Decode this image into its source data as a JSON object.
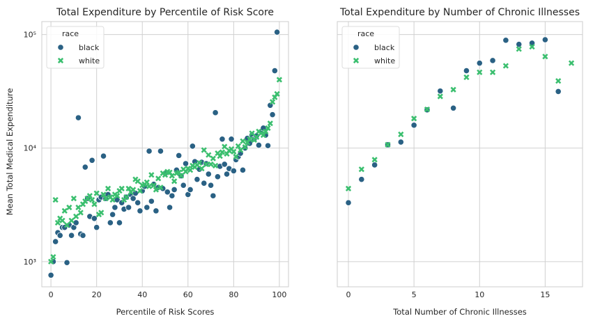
{
  "colors": {
    "black": "#2a6184",
    "white": "#3bbf6f",
    "grid": "#d0d0d0",
    "frame": "#cccccc",
    "text": "#262626"
  },
  "legend_title": "race",
  "chart_data": [
    {
      "type": "scatter",
      "title": "Total Expenditure by Percentile of Risk Score",
      "xlabel": "Percentile of Risk Scores",
      "ylabel": "Mean Total Medical Expenditure",
      "xlim": [
        -4,
        104
      ],
      "ylim": [
        600,
        130000
      ],
      "yscale": "log",
      "xticks": [
        0,
        20,
        40,
        60,
        80,
        100
      ],
      "xtick_labels": [
        "0",
        "20",
        "40",
        "60",
        "80",
        "100"
      ],
      "yticks": [
        1000,
        10000,
        100000
      ],
      "ytick_labels": [
        "10³",
        "10⁴",
        "10⁵"
      ],
      "legend": "top-left",
      "grid": true,
      "series": [
        {
          "name": "black",
          "marker": "circle",
          "x": [
            0,
            1,
            2,
            3,
            4,
            5,
            6,
            7,
            8,
            9,
            10,
            11,
            12,
            13,
            14,
            15,
            16,
            17,
            18,
            19,
            20,
            21,
            22,
            23,
            24,
            25,
            26,
            27,
            28,
            29,
            30,
            31,
            32,
            33,
            34,
            35,
            36,
            37,
            38,
            39,
            40,
            41,
            42,
            43,
            44,
            45,
            46,
            47,
            48,
            49,
            50,
            51,
            52,
            53,
            54,
            55,
            56,
            57,
            58,
            59,
            60,
            61,
            62,
            63,
            64,
            65,
            66,
            67,
            68,
            69,
            70,
            71,
            72,
            73,
            74,
            75,
            76,
            77,
            78,
            79,
            80,
            81,
            82,
            83,
            84,
            85,
            86,
            87,
            88,
            89,
            90,
            91,
            92,
            93,
            94,
            95,
            96,
            97,
            98,
            99
          ],
          "y": [
            760,
            1000,
            1500,
            1800,
            1700,
            2000,
            2000,
            980,
            2100,
            1700,
            2000,
            2200,
            18500,
            1750,
            1700,
            6800,
            3600,
            2500,
            7800,
            2400,
            2000,
            3500,
            3700,
            8500,
            3600,
            3900,
            2200,
            2600,
            3000,
            3500,
            2200,
            3300,
            2900,
            3700,
            3000,
            3900,
            3600,
            4000,
            3300,
            2800,
            4200,
            4600,
            3000,
            9400,
            3400,
            4800,
            2800,
            4500,
            9400,
            4400,
            6000,
            4100,
            3000,
            3800,
            4300,
            6400,
            8600,
            5700,
            4700,
            7300,
            3900,
            4300,
            10400,
            7600,
            5300,
            6500,
            7500,
            4900,
            7300,
            5900,
            4700,
            3800,
            20500,
            5600,
            6900,
            12000,
            7200,
            5900,
            6600,
            12000,
            6300,
            7900,
            8400,
            9000,
            6400,
            10000,
            12200,
            11000,
            13000,
            12000,
            12800,
            10600,
            14000,
            15000,
            13000,
            10500,
            23800,
            19700,
            48000,
            105000
          ]
        },
        {
          "name": "white",
          "marker": "x",
          "x": [
            0,
            1,
            2,
            3,
            4,
            5,
            6,
            7,
            8,
            9,
            10,
            11,
            12,
            13,
            14,
            15,
            16,
            17,
            18,
            19,
            20,
            21,
            22,
            23,
            24,
            25,
            26,
            27,
            28,
            29,
            30,
            31,
            32,
            33,
            34,
            35,
            36,
            37,
            38,
            39,
            40,
            41,
            42,
            43,
            44,
            45,
            46,
            47,
            48,
            49,
            50,
            51,
            52,
            53,
            54,
            55,
            56,
            57,
            58,
            59,
            60,
            61,
            62,
            63,
            64,
            65,
            66,
            67,
            68,
            69,
            70,
            71,
            72,
            73,
            74,
            75,
            76,
            77,
            78,
            79,
            80,
            81,
            82,
            83,
            84,
            85,
            86,
            87,
            88,
            89,
            90,
            91,
            92,
            93,
            94,
            95,
            96,
            97,
            98,
            99,
            100
          ],
          "y": [
            1000,
            1100,
            3500,
            2200,
            2400,
            2300,
            2800,
            2100,
            3000,
            2300,
            3600,
            2500,
            3000,
            2700,
            3200,
            3400,
            3600,
            3800,
            3500,
            3200,
            4000,
            2600,
            2700,
            3900,
            3600,
            4400,
            3700,
            3500,
            3900,
            3800,
            4200,
            4400,
            3500,
            3700,
            4400,
            4100,
            4300,
            5300,
            5100,
            4200,
            4700,
            4800,
            5000,
            4600,
            5800,
            4700,
            4300,
            5400,
            4500,
            6000,
            5800,
            6200,
            6100,
            5700,
            5100,
            6000,
            6100,
            5700,
            6500,
            6200,
            6600,
            6400,
            7000,
            6800,
            7100,
            7400,
            6600,
            9600,
            7200,
            8700,
            7200,
            8100,
            7000,
            9000,
            8500,
            9200,
            10300,
            8900,
            9500,
            9800,
            9300,
            8400,
            10400,
            9600,
            11500,
            10200,
            11200,
            12000,
            13500,
            11800,
            12500,
            14000,
            13500,
            13000,
            14000,
            15000,
            16500,
            25500,
            28000,
            30000,
            40000
          ]
        }
      ]
    },
    {
      "type": "scatter",
      "title": "Total Expenditure by Number of Chronic Illnesses",
      "xlabel": "Total Number of Chronic Illnesses",
      "ylabel": "",
      "xlim": [
        -0.85,
        17.85
      ],
      "ylim": [
        600,
        130000
      ],
      "yscale": "log",
      "xticks": [
        0,
        5,
        10,
        15
      ],
      "xtick_labels": [
        "0",
        "5",
        "10",
        "15"
      ],
      "yticks": [
        1000,
        10000,
        100000
      ],
      "ytick_labels": [],
      "legend": "top-left",
      "grid": true,
      "series": [
        {
          "name": "black",
          "marker": "circle",
          "x": [
            0,
            1,
            2,
            3,
            4,
            5,
            6,
            7,
            8,
            9,
            10,
            11,
            12,
            13,
            14,
            15,
            16
          ],
          "y": [
            3300,
            5300,
            7100,
            10700,
            11300,
            15900,
            21700,
            31800,
            22500,
            48000,
            56000,
            59000,
            89000,
            82000,
            84000,
            90000,
            31500
          ]
        },
        {
          "name": "white",
          "marker": "x",
          "x": [
            0,
            1,
            2,
            3,
            4,
            5,
            6,
            7,
            8,
            9,
            10,
            11,
            12,
            13,
            14,
            15,
            16,
            17
          ],
          "y": [
            4400,
            6500,
            7900,
            10700,
            13200,
            18200,
            21900,
            28500,
            32700,
            42000,
            46500,
            46500,
            53000,
            74500,
            78000,
            64000,
            39000,
            56000
          ]
        }
      ]
    }
  ]
}
